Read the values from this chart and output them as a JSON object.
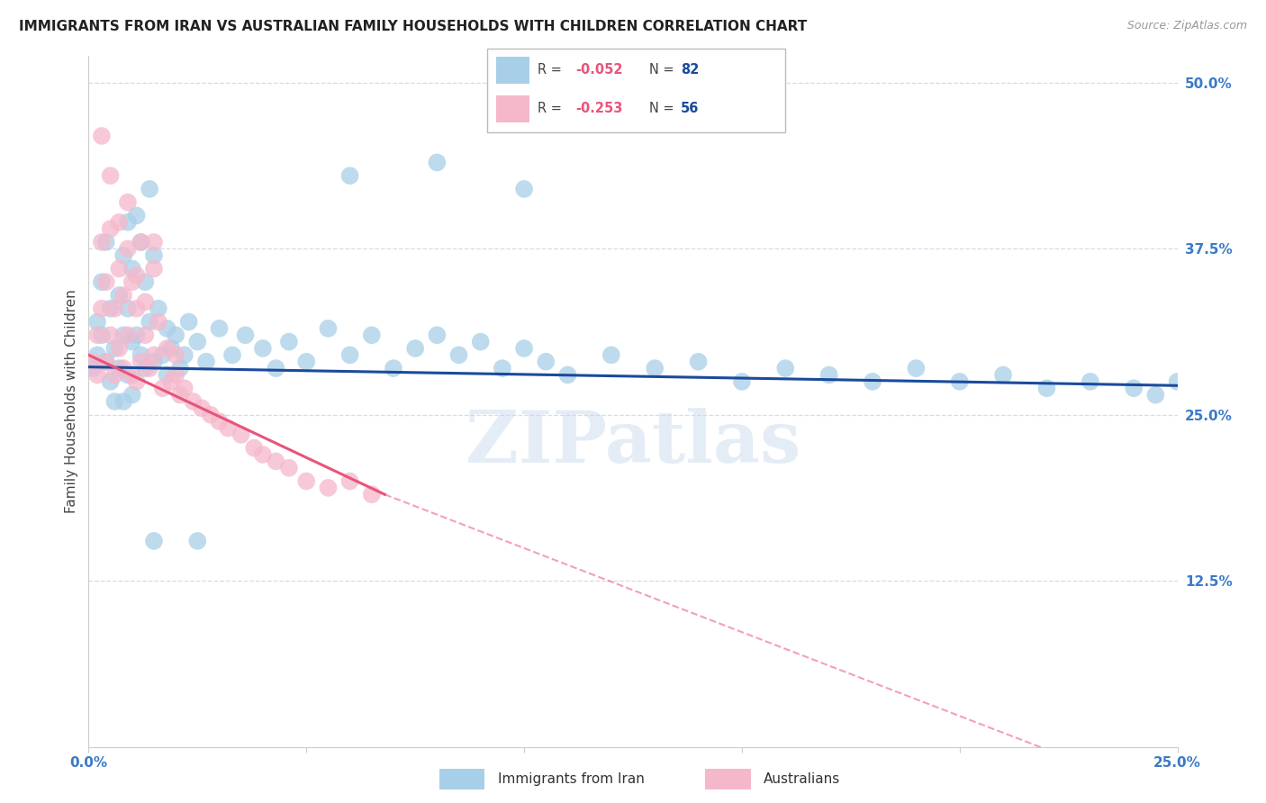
{
  "title": "IMMIGRANTS FROM IRAN VS AUSTRALIAN FAMILY HOUSEHOLDS WITH CHILDREN CORRELATION CHART",
  "source": "Source: ZipAtlas.com",
  "ylabel": "Family Households with Children",
  "xlim": [
    0.0,
    0.25
  ],
  "ylim": [
    0.0,
    0.52
  ],
  "ytick_values": [
    0.125,
    0.25,
    0.375,
    0.5
  ],
  "xtick_values": [
    0.0,
    0.05,
    0.1,
    0.15,
    0.2,
    0.25
  ],
  "series_blue": {
    "name": "Immigrants from Iran",
    "color": "#a8cfe8",
    "edge_color": "#a8cfe8",
    "R": -0.052,
    "N": 82,
    "line_color": "#1a4a9c",
    "x": [
      0.001,
      0.002,
      0.002,
      0.003,
      0.003,
      0.004,
      0.004,
      0.005,
      0.005,
      0.006,
      0.006,
      0.007,
      0.007,
      0.008,
      0.008,
      0.008,
      0.009,
      0.009,
      0.009,
      0.01,
      0.01,
      0.01,
      0.011,
      0.011,
      0.012,
      0.012,
      0.013,
      0.013,
      0.014,
      0.014,
      0.015,
      0.015,
      0.016,
      0.017,
      0.018,
      0.018,
      0.019,
      0.02,
      0.021,
      0.022,
      0.023,
      0.025,
      0.027,
      0.03,
      0.033,
      0.036,
      0.04,
      0.043,
      0.046,
      0.05,
      0.055,
      0.06,
      0.065,
      0.07,
      0.075,
      0.08,
      0.085,
      0.09,
      0.095,
      0.1,
      0.105,
      0.11,
      0.12,
      0.13,
      0.14,
      0.15,
      0.16,
      0.17,
      0.18,
      0.19,
      0.2,
      0.21,
      0.22,
      0.23,
      0.24,
      0.245,
      0.25,
      0.06,
      0.08,
      0.1,
      0.015,
      0.025
    ],
    "y": [
      0.285,
      0.32,
      0.295,
      0.35,
      0.31,
      0.38,
      0.29,
      0.33,
      0.275,
      0.3,
      0.26,
      0.34,
      0.285,
      0.37,
      0.31,
      0.26,
      0.395,
      0.33,
      0.28,
      0.36,
      0.305,
      0.265,
      0.4,
      0.31,
      0.38,
      0.295,
      0.35,
      0.285,
      0.42,
      0.32,
      0.37,
      0.29,
      0.33,
      0.295,
      0.315,
      0.28,
      0.3,
      0.31,
      0.285,
      0.295,
      0.32,
      0.305,
      0.29,
      0.315,
      0.295,
      0.31,
      0.3,
      0.285,
      0.305,
      0.29,
      0.315,
      0.295,
      0.31,
      0.285,
      0.3,
      0.31,
      0.295,
      0.305,
      0.285,
      0.3,
      0.29,
      0.28,
      0.295,
      0.285,
      0.29,
      0.275,
      0.285,
      0.28,
      0.275,
      0.285,
      0.275,
      0.28,
      0.27,
      0.275,
      0.27,
      0.265,
      0.275,
      0.43,
      0.44,
      0.42,
      0.155,
      0.155
    ]
  },
  "series_pink": {
    "name": "Australians",
    "color": "#f5b8cb",
    "edge_color": "#f5b8cb",
    "R": -0.253,
    "N": 56,
    "line_color": "#e8547a",
    "line_solid_end": 0.068,
    "x": [
      0.001,
      0.002,
      0.002,
      0.003,
      0.003,
      0.004,
      0.004,
      0.005,
      0.005,
      0.006,
      0.006,
      0.007,
      0.007,
      0.008,
      0.008,
      0.009,
      0.009,
      0.01,
      0.01,
      0.011,
      0.011,
      0.012,
      0.012,
      0.013,
      0.014,
      0.015,
      0.015,
      0.016,
      0.017,
      0.018,
      0.019,
      0.02,
      0.021,
      0.022,
      0.024,
      0.026,
      0.028,
      0.03,
      0.032,
      0.035,
      0.038,
      0.04,
      0.043,
      0.046,
      0.05,
      0.055,
      0.06,
      0.065,
      0.003,
      0.005,
      0.007,
      0.009,
      0.011,
      0.013,
      0.015,
      0.02
    ],
    "y": [
      0.29,
      0.31,
      0.28,
      0.38,
      0.33,
      0.29,
      0.35,
      0.31,
      0.39,
      0.33,
      0.28,
      0.36,
      0.3,
      0.34,
      0.285,
      0.41,
      0.31,
      0.35,
      0.28,
      0.33,
      0.275,
      0.38,
      0.29,
      0.31,
      0.285,
      0.36,
      0.295,
      0.32,
      0.27,
      0.3,
      0.275,
      0.28,
      0.265,
      0.27,
      0.26,
      0.255,
      0.25,
      0.245,
      0.24,
      0.235,
      0.225,
      0.22,
      0.215,
      0.21,
      0.2,
      0.195,
      0.2,
      0.19,
      0.46,
      0.43,
      0.395,
      0.375,
      0.355,
      0.335,
      0.38,
      0.295
    ]
  },
  "watermark": "ZIPatlas",
  "background_color": "#ffffff",
  "grid_color": "#d0d8e8",
  "title_fontsize": 11,
  "tick_label_color": "#3a7ac8",
  "tick_label_color_right": "#3a7ac8"
}
